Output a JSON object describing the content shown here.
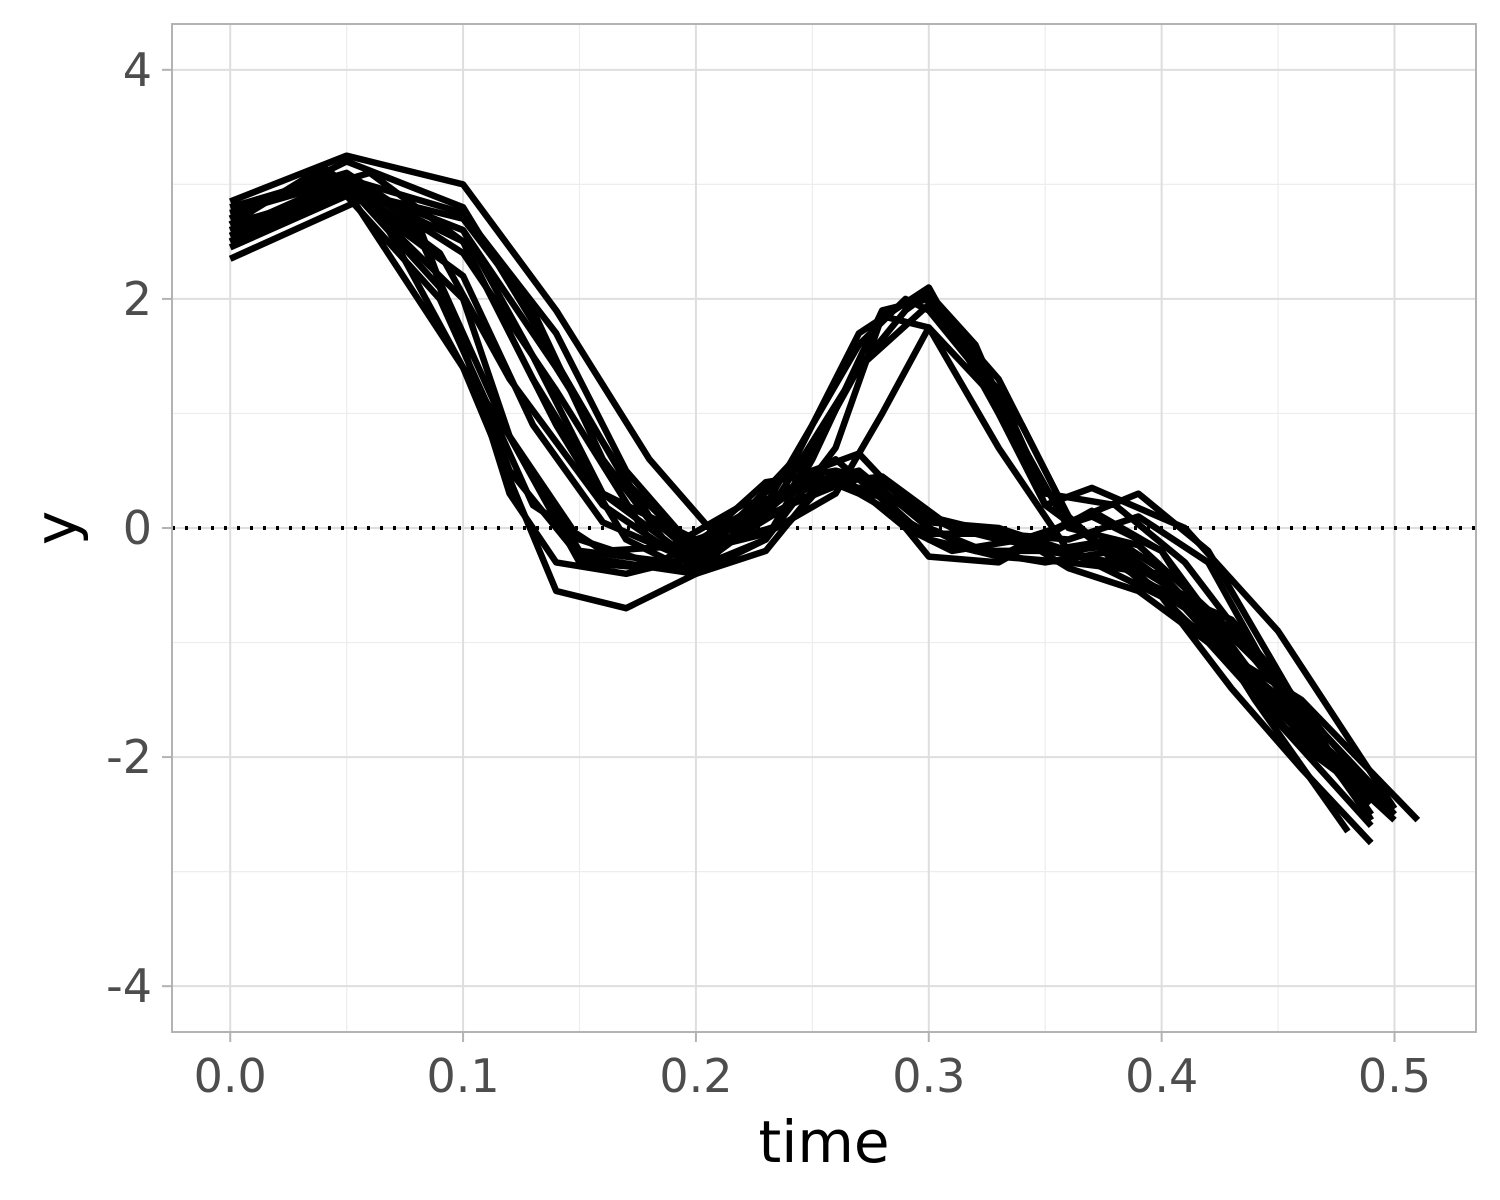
{
  "chart_data": {
    "type": "line",
    "title": "",
    "xlabel": "time",
    "ylabel": "y",
    "xlim": [
      -0.025,
      0.535
    ],
    "ylim": [
      -4.4,
      4.4
    ],
    "x_ticks": [
      0.0,
      0.1,
      0.2,
      0.3,
      0.4,
      0.5
    ],
    "x_tick_labels": [
      "0.0",
      "0.1",
      "0.2",
      "0.3",
      "0.4",
      "0.5"
    ],
    "y_ticks": [
      -4,
      -2,
      0,
      2,
      4
    ],
    "y_tick_labels": [
      "-4",
      "-2",
      "0",
      "2",
      "4"
    ],
    "grid": true,
    "reference_line": {
      "y": 0,
      "style": "dotted"
    },
    "line_color": "#000000",
    "series": [
      {
        "x": [
          0.0,
          0.05,
          0.1,
          0.15,
          0.18,
          0.2,
          0.22,
          0.25,
          0.27,
          0.3,
          0.33,
          0.36,
          0.4,
          0.45,
          0.49
        ],
        "y": [
          2.5,
          2.95,
          1.4,
          -0.1,
          -0.3,
          -0.35,
          -0.05,
          0.5,
          0.65,
          0.0,
          -0.25,
          -0.3,
          -0.4,
          -1.5,
          -2.5
        ]
      },
      {
        "x": [
          0.0,
          0.04,
          0.08,
          0.12,
          0.15,
          0.19,
          0.23,
          0.27,
          0.29,
          0.3,
          0.34,
          0.36,
          0.38,
          0.42,
          0.46,
          0.5
        ],
        "y": [
          2.7,
          3.1,
          2.6,
          0.8,
          -0.2,
          -0.3,
          0.2,
          1.6,
          2.0,
          1.9,
          0.9,
          0.1,
          -0.3,
          -0.8,
          -1.8,
          -2.55
        ]
      },
      {
        "x": [
          0.0,
          0.05,
          0.09,
          0.12,
          0.15,
          0.2,
          0.23,
          0.26,
          0.3,
          0.32,
          0.35,
          0.38,
          0.41,
          0.45,
          0.49
        ],
        "y": [
          2.6,
          3.0,
          2.1,
          0.5,
          -0.25,
          -0.4,
          0.2,
          0.6,
          -0.1,
          -0.2,
          -0.2,
          -0.1,
          -0.5,
          -1.7,
          -2.6
        ]
      },
      {
        "x": [
          0.0,
          0.05,
          0.09,
          0.13,
          0.16,
          0.2,
          0.23,
          0.26,
          0.28,
          0.3,
          0.33,
          0.35,
          0.38,
          0.41,
          0.45,
          0.49
        ],
        "y": [
          2.45,
          2.9,
          2.0,
          0.2,
          -0.2,
          -0.15,
          0.4,
          0.5,
          0.4,
          0.1,
          -0.05,
          -0.2,
          -0.3,
          -0.7,
          -1.6,
          -2.4
        ]
      },
      {
        "x": [
          0.0,
          0.06,
          0.1,
          0.14,
          0.17,
          0.2,
          0.23,
          0.25,
          0.27,
          0.3,
          0.33,
          0.37,
          0.4,
          0.44,
          0.48
        ],
        "y": [
          2.35,
          2.9,
          1.4,
          -0.55,
          -0.7,
          -0.4,
          -0.2,
          0.3,
          0.5,
          -0.25,
          -0.3,
          0.15,
          -0.2,
          -1.5,
          -2.65
        ]
      },
      {
        "x": [
          0.0,
          0.05,
          0.08,
          0.1,
          0.12,
          0.14,
          0.17,
          0.2,
          0.22,
          0.25,
          0.28,
          0.3,
          0.33,
          0.36,
          0.4,
          0.43,
          0.46,
          0.49
        ],
        "y": [
          2.8,
          3.1,
          2.7,
          1.6,
          0.3,
          -0.3,
          -0.4,
          -0.25,
          0.1,
          0.45,
          0.3,
          0.05,
          0.0,
          -0.2,
          -0.6,
          -1.4,
          -2.1,
          -2.75
        ]
      },
      {
        "x": [
          0.0,
          0.05,
          0.1,
          0.14,
          0.18,
          0.2,
          0.24,
          0.27,
          0.3,
          0.33,
          0.35,
          0.37,
          0.41,
          0.45,
          0.5
        ],
        "y": [
          2.55,
          3.0,
          2.6,
          1.4,
          0.1,
          -0.25,
          0.5,
          1.7,
          2.1,
          1.0,
          0.2,
          0.35,
          0.0,
          -0.9,
          -2.45
        ]
      },
      {
        "x": [
          0.0,
          0.05,
          0.1,
          0.14,
          0.18,
          0.2,
          0.24,
          0.27,
          0.3,
          0.33,
          0.35,
          0.38,
          0.41,
          0.44,
          0.49
        ],
        "y": [
          2.6,
          3.05,
          2.4,
          1.2,
          -0.1,
          -0.3,
          0.3,
          1.4,
          1.95,
          1.2,
          0.3,
          0.2,
          -0.3,
          -1.1,
          -2.5
        ]
      },
      {
        "x": [
          0.0,
          0.04,
          0.09,
          0.12,
          0.16,
          0.2,
          0.23,
          0.25,
          0.28,
          0.3,
          0.33,
          0.36,
          0.39,
          0.43,
          0.47,
          0.5
        ],
        "y": [
          2.65,
          3.15,
          2.4,
          1.3,
          0.2,
          -0.35,
          -0.1,
          0.6,
          1.9,
          2.0,
          1.3,
          0.1,
          -0.45,
          -0.8,
          -1.8,
          -2.5
        ]
      },
      {
        "x": [
          0.0,
          0.05,
          0.1,
          0.13,
          0.16,
          0.19,
          0.23,
          0.26,
          0.29,
          0.31,
          0.34,
          0.36,
          0.39,
          0.42,
          0.46,
          0.5
        ],
        "y": [
          2.5,
          2.95,
          2.7,
          1.9,
          0.6,
          -0.2,
          0.1,
          0.4,
          0.2,
          0.0,
          -0.1,
          -0.35,
          -0.55,
          -1.0,
          -1.9,
          -2.5
        ]
      },
      {
        "x": [
          0.0,
          0.05,
          0.1,
          0.13,
          0.17,
          0.2,
          0.24,
          0.26,
          0.29,
          0.31,
          0.34,
          0.37,
          0.4,
          0.44,
          0.47,
          0.5
        ],
        "y": [
          2.7,
          3.2,
          2.8,
          1.8,
          0.4,
          -0.2,
          0.05,
          0.5,
          0.0,
          -0.2,
          -0.1,
          0.1,
          -0.2,
          -1.3,
          -1.8,
          -2.45
        ]
      },
      {
        "x": [
          0.0,
          0.06,
          0.1,
          0.14,
          0.17,
          0.2,
          0.23,
          0.26,
          0.28,
          0.3,
          0.33,
          0.36,
          0.38,
          0.42,
          0.46,
          0.49
        ],
        "y": [
          2.75,
          3.1,
          2.5,
          0.9,
          -0.1,
          -0.4,
          -0.1,
          0.7,
          1.85,
          1.75,
          0.7,
          -0.2,
          -0.15,
          -0.75,
          -1.55,
          -2.55
        ]
      },
      {
        "x": [
          0.0,
          0.05,
          0.1,
          0.13,
          0.16,
          0.19,
          0.22,
          0.26,
          0.28,
          0.31,
          0.33,
          0.36,
          0.39,
          0.42,
          0.46,
          0.51
        ],
        "y": [
          2.5,
          3.0,
          2.5,
          1.3,
          0.3,
          -0.15,
          0.2,
          0.4,
          0.45,
          0.0,
          -0.1,
          -0.2,
          -0.4,
          -1.0,
          -1.5,
          -2.55
        ]
      },
      {
        "x": [
          0.0,
          0.05,
          0.1,
          0.14,
          0.18,
          0.21,
          0.24,
          0.27,
          0.3,
          0.33,
          0.36,
          0.39,
          0.42,
          0.45,
          0.49
        ],
        "y": [
          2.85,
          3.25,
          3.0,
          1.9,
          0.6,
          -0.1,
          0.55,
          0.3,
          -0.05,
          -0.05,
          -0.1,
          0.1,
          -0.3,
          -1.4,
          -2.55
        ]
      },
      {
        "x": [
          0.0,
          0.05,
          0.1,
          0.12,
          0.15,
          0.18,
          0.21,
          0.24,
          0.27,
          0.3,
          0.32,
          0.35,
          0.38,
          0.41,
          0.45,
          0.49
        ],
        "y": [
          2.6,
          3.0,
          2.0,
          0.8,
          -0.3,
          -0.35,
          0.0,
          0.35,
          0.5,
          0.0,
          -0.2,
          -0.3,
          -0.2,
          -0.8,
          -1.5,
          -2.5
        ]
      },
      {
        "x": [
          0.0,
          0.05,
          0.1,
          0.13,
          0.16,
          0.2,
          0.23,
          0.27,
          0.29,
          0.3,
          0.32,
          0.35,
          0.37,
          0.41,
          0.45,
          0.5
        ],
        "y": [
          2.55,
          3.0,
          2.6,
          1.5,
          0.3,
          -0.1,
          0.1,
          1.4,
          1.9,
          2.05,
          1.6,
          0.2,
          -0.1,
          -0.6,
          -1.7,
          -2.45
        ]
      },
      {
        "x": [
          0.0,
          0.05,
          0.1,
          0.13,
          0.16,
          0.2,
          0.24,
          0.27,
          0.3,
          0.33,
          0.36,
          0.39,
          0.42,
          0.46,
          0.49
        ],
        "y": [
          2.65,
          2.95,
          2.2,
          0.9,
          0.05,
          -0.3,
          0.2,
          0.45,
          -0.1,
          -0.25,
          0.05,
          0.3,
          -0.2,
          -1.6,
          -2.5
        ]
      },
      {
        "x": [
          0.0,
          0.05,
          0.1,
          0.14,
          0.17,
          0.2,
          0.23,
          0.26,
          0.28,
          0.3,
          0.33,
          0.36,
          0.39,
          0.43,
          0.47,
          0.5
        ],
        "y": [
          2.75,
          3.05,
          2.75,
          1.7,
          0.5,
          -0.2,
          -0.05,
          0.3,
          1.0,
          1.75,
          1.1,
          0.0,
          -0.15,
          -0.9,
          -1.9,
          -2.5
        ]
      }
    ]
  }
}
